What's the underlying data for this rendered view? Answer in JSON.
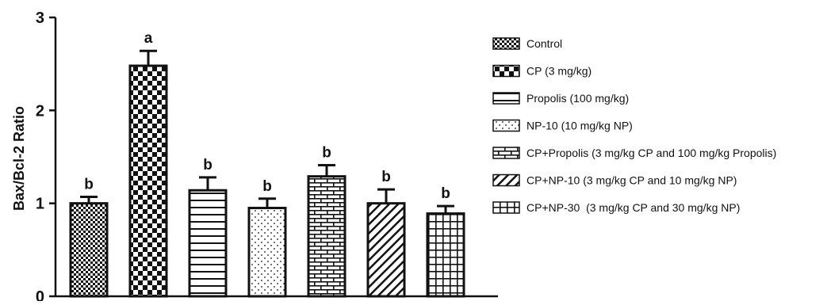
{
  "chart_data": {
    "type": "bar",
    "title": "",
    "xlabel": "",
    "ylabel": "Bax/Bcl-2 Ratio",
    "ylim": [
      0,
      3
    ],
    "yticks": [
      "0",
      "1",
      "2",
      "3"
    ],
    "categories": [
      "Control",
      "CP (3 mg/kg)",
      "Propolis (100 mg/kg)",
      "NP-10 (10 mg/kg NP)",
      "CP+Propolis (3 mg/kg CP and 100 mg/kg Propolis)",
      "CP+NP-10 (3 mg/kg CP and 10 mg/kg NP)",
      "CP+NP-30  (3 mg/kg CP and 30 mg/kg NP)"
    ],
    "values": [
      1.0,
      2.48,
      1.14,
      0.95,
      1.29,
      1.0,
      0.89
    ],
    "errors": [
      0.07,
      0.16,
      0.14,
      0.1,
      0.12,
      0.15,
      0.08
    ],
    "significance": [
      "b",
      "a",
      "b",
      "b",
      "b",
      "b",
      "b"
    ],
    "patterns": [
      "checker-small",
      "checker-large",
      "horizontal-lines",
      "dots",
      "bricks",
      "diagonal-lines",
      "grid"
    ],
    "grid": false,
    "legend_position": "right"
  }
}
